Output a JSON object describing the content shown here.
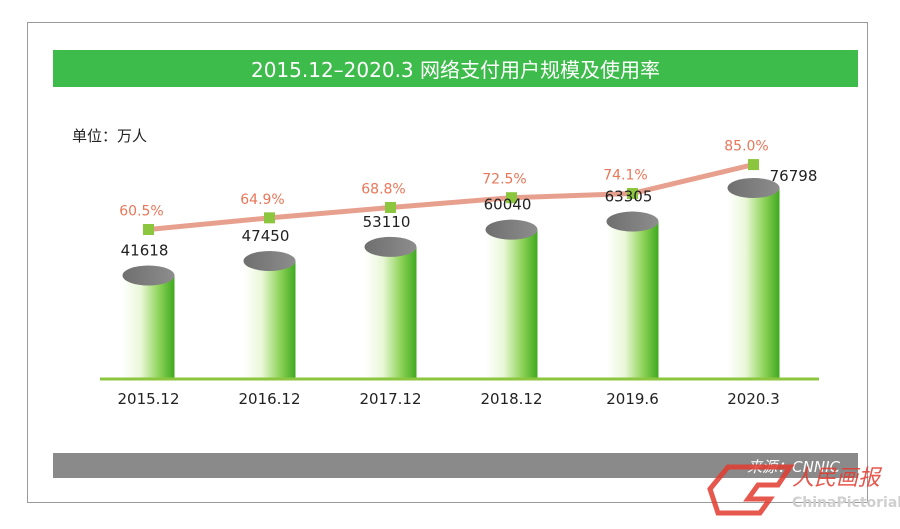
{
  "unit_label": "单位：万人",
  "source_label": "来源：CNNIC",
  "watermark": {
    "brand_latin": "ChinaPictorial",
    "brand_cn": "人民画报",
    "logo_icon": "china-pictorial-logo"
  },
  "colors": {
    "title_bar": "#3dbb4b",
    "bar_green": "#56c22e",
    "bar_top": "#7f7f7f",
    "line": "#e8a08e",
    "marker": "#8cc63f",
    "axis": "#8cc63f",
    "pct_text": "#e8775a",
    "source_bar": "#8a8a8a"
  },
  "chart_data": {
    "type": "bar",
    "title": "2015.12–2020.3 网络支付用户规模及使用率",
    "ylabel": "单位：万人",
    "categories": [
      "2015.12",
      "2016.12",
      "2017.12",
      "2018.12",
      "2019.6",
      "2020.3"
    ],
    "series": [
      {
        "type": "bar",
        "values": [
          41618,
          47450,
          53110,
          60040,
          63305,
          76798
        ],
        "labels": [
          "41618",
          "47450",
          "53110",
          "60040",
          "63305",
          "76798"
        ]
      },
      {
        "type": "line",
        "values": [
          60.5,
          64.9,
          68.8,
          72.5,
          74.1,
          85.0
        ],
        "labels": [
          "60.5%",
          "64.9%",
          "68.8%",
          "72.5%",
          "74.1%",
          "85.0%"
        ]
      }
    ],
    "grid": false,
    "legend": "none"
  }
}
